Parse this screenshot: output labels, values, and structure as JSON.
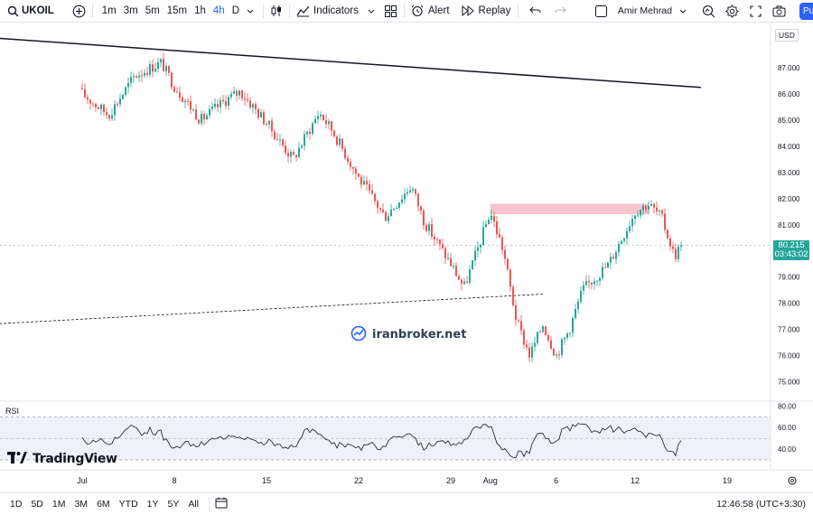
{
  "header": {
    "symbol": "UKOIL",
    "timeframes": [
      {
        "label": "1m",
        "active": false
      },
      {
        "label": "3m",
        "active": false
      },
      {
        "label": "5m",
        "active": false
      },
      {
        "label": "15m",
        "active": false
      },
      {
        "label": "1h",
        "active": false
      },
      {
        "label": "4h",
        "active": true
      },
      {
        "label": "D",
        "active": false
      }
    ],
    "indicators_label": "Indicators",
    "alert_label": "Alert",
    "replay_label": "Replay",
    "user_name": "Amir Mehrad",
    "publish_label": "Pu"
  },
  "chart": {
    "currency": "USD",
    "price_axis_ticks": [
      "87.000",
      "86.000",
      "85.000",
      "84.000",
      "83.000",
      "82.000",
      "81.000",
      "80.000",
      "79.000",
      "78.000",
      "77.000",
      "76.000",
      "75.000"
    ],
    "last_price": "80.215",
    "countdown": "03:43:02",
    "indicator_label": "RSI",
    "rsi_axis_ticks": [
      "80.00",
      "60.00",
      "40.00"
    ],
    "time_axis_ticks": [
      "Jul",
      "8",
      "15",
      "22",
      "29",
      "Aug",
      "6",
      "12",
      "19"
    ],
    "watermark_text": "iranbroker.net",
    "logo_text": "TradingView",
    "colors": {
      "up": "#26a69a",
      "down": "#ef5350",
      "zone": "#f8bbc8"
    }
  },
  "chart_data": {
    "type": "candlestick",
    "symbol": "UKOIL",
    "timeframe": "4h",
    "ylim": [
      74.8,
      88.2
    ],
    "close_path": [
      {
        "x": "Jul 1",
        "y": 86.0
      },
      {
        "x": "Jul 3",
        "y": 85.2
      },
      {
        "x": "Jul 5",
        "y": 86.7
      },
      {
        "x": "Jul 7",
        "y": 87.2
      },
      {
        "x": "Jul 8",
        "y": 86.3
      },
      {
        "x": "Jul 10",
        "y": 85.0
      },
      {
        "x": "Jul 12",
        "y": 85.8
      },
      {
        "x": "Jul 13",
        "y": 86.1
      },
      {
        "x": "Jul 15",
        "y": 84.9
      },
      {
        "x": "Jul 17",
        "y": 83.5
      },
      {
        "x": "Jul 19",
        "y": 85.3
      },
      {
        "x": "Jul 20",
        "y": 84.6
      },
      {
        "x": "Jul 22",
        "y": 82.8
      },
      {
        "x": "Jul 24",
        "y": 81.3
      },
      {
        "x": "Jul 26",
        "y": 82.5
      },
      {
        "x": "Jul 27",
        "y": 81.1
      },
      {
        "x": "Jul 29",
        "y": 79.5
      },
      {
        "x": "Jul 30",
        "y": 78.6
      },
      {
        "x": "Jul 31",
        "y": 80.0
      },
      {
        "x": "Aug 1",
        "y": 81.5
      },
      {
        "x": "Aug 2",
        "y": 80.0
      },
      {
        "x": "Aug 3",
        "y": 77.3
      },
      {
        "x": "Aug 4",
        "y": 76.0
      },
      {
        "x": "Aug 5",
        "y": 77.2
      },
      {
        "x": "Aug 6",
        "y": 76.0
      },
      {
        "x": "Aug 7",
        "y": 77.0
      },
      {
        "x": "Aug 8",
        "y": 78.5
      },
      {
        "x": "Aug 10",
        "y": 79.5
      },
      {
        "x": "Aug 11",
        "y": 80.5
      },
      {
        "x": "Aug 12",
        "y": 81.5
      },
      {
        "x": "Aug 13",
        "y": 81.8
      },
      {
        "x": "Aug 14",
        "y": 81.3
      },
      {
        "x": "Aug 15",
        "y": 79.8
      },
      {
        "x": "Aug 15b",
        "y": 80.215
      }
    ],
    "supply_zone": {
      "from": "Aug 1",
      "to": "Aug 13",
      "low": 81.4,
      "high": 81.8
    },
    "trendlines": [
      {
        "style": "solid",
        "start": {
          "x": "Jun 24",
          "y": 88.15
        },
        "end": {
          "x": "Aug 17",
          "y": 86.25
        }
      },
      {
        "style": "dashed",
        "start": {
          "x": "Jun 24",
          "y": 77.2
        },
        "end": {
          "x": "Aug 5",
          "y": 78.35
        }
      }
    ],
    "rsi": {
      "ylim": [
        25,
        82
      ],
      "levels": [
        70,
        30
      ],
      "last": 48
    }
  },
  "footer": {
    "ranges": [
      "1D",
      "5D",
      "1M",
      "3M",
      "6M",
      "YTD",
      "1Y",
      "5Y",
      "All"
    ],
    "clock": "12:46:58 (UTC+3:30)"
  }
}
